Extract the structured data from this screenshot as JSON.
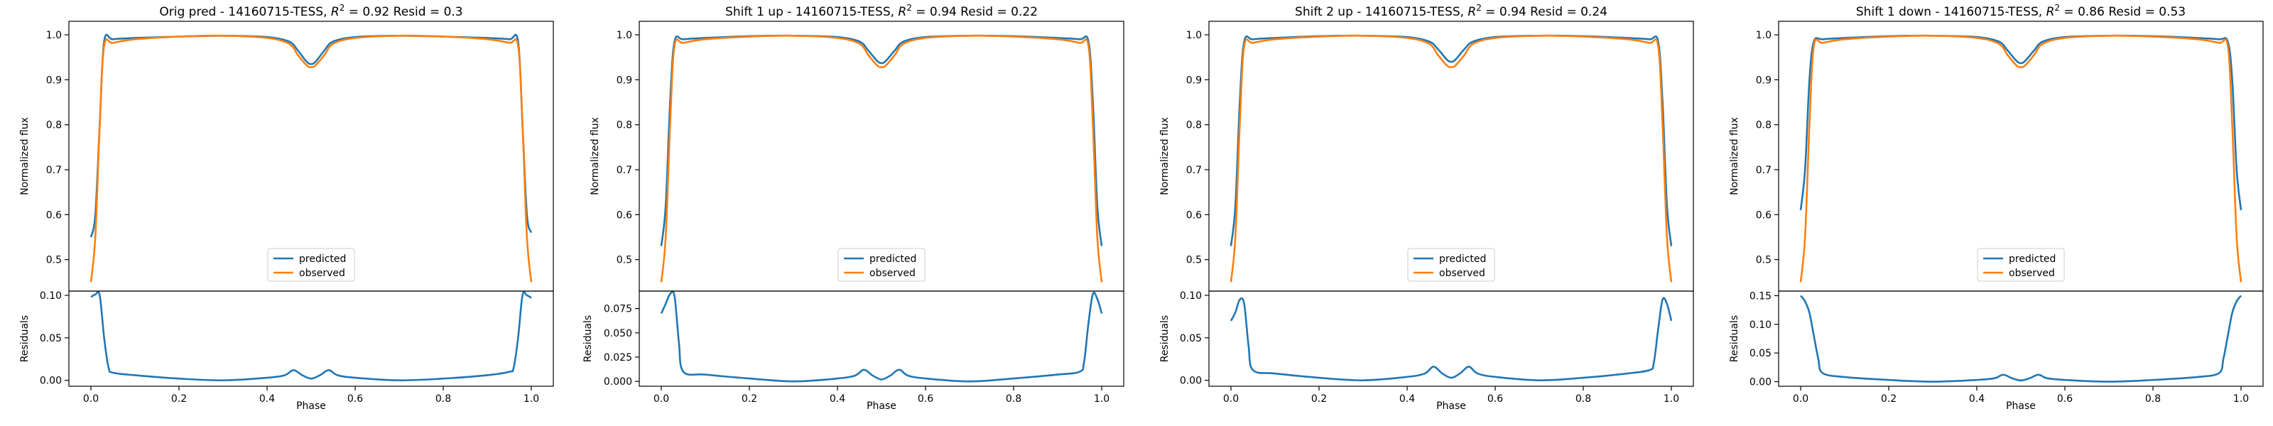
{
  "chart_data": [
    {
      "type": "line",
      "title_text": "Orig pred - 14160715-TESS, ",
      "r2_label": "R",
      "r2_sup": "2",
      "r2_rest": " = 0.92 Resid = 0.3",
      "xlabel": "Phase",
      "ylabel_top": "Normalized flux",
      "ylabel_bottom": "Residuals",
      "xlim": [
        -0.05,
        1.05
      ],
      "ylim_top": [
        0.43,
        1.03
      ],
      "ylim_bottom": [
        -0.007,
        0.105
      ],
      "xticks": [
        "0.0",
        "0.2",
        "0.4",
        "0.6",
        "0.8",
        "1.0"
      ],
      "yticks_top": [
        "0.5",
        "0.6",
        "0.7",
        "0.8",
        "0.9",
        "1.0"
      ],
      "yticks_bottom": [
        "0.00",
        "0.05",
        "0.10"
      ],
      "legend_position": "lower center",
      "series": [
        {
          "name": "predicted",
          "color": "#1f77b4",
          "x": [
            0.0,
            0.01,
            0.02,
            0.03,
            0.05,
            0.1,
            0.2,
            0.3,
            0.4,
            0.45,
            0.47,
            0.49,
            0.5,
            0.51,
            0.53,
            0.55,
            0.6,
            0.7,
            0.8,
            0.9,
            0.95,
            0.97,
            0.98,
            0.99,
            1.0
          ],
          "y": [
            0.55,
            0.6,
            0.8,
            0.985,
            0.99,
            0.993,
            0.996,
            0.998,
            0.995,
            0.985,
            0.965,
            0.94,
            0.935,
            0.94,
            0.965,
            0.985,
            0.995,
            0.998,
            0.996,
            0.993,
            0.99,
            0.985,
            0.8,
            0.6,
            0.56
          ]
        },
        {
          "name": "observed",
          "color": "#ff7f0e",
          "x": [
            0.0,
            0.01,
            0.02,
            0.03,
            0.05,
            0.1,
            0.2,
            0.3,
            0.4,
            0.45,
            0.47,
            0.49,
            0.5,
            0.51,
            0.53,
            0.55,
            0.6,
            0.7,
            0.8,
            0.9,
            0.95,
            0.97,
            0.98,
            0.99,
            1.0
          ],
          "y": [
            0.45,
            0.55,
            0.8,
            0.975,
            0.982,
            0.99,
            0.996,
            0.998,
            0.993,
            0.98,
            0.955,
            0.932,
            0.928,
            0.932,
            0.955,
            0.98,
            0.993,
            0.998,
            0.996,
            0.99,
            0.982,
            0.975,
            0.8,
            0.55,
            0.45
          ]
        }
      ],
      "residuals": {
        "color": "#1f77b4",
        "x": [
          0.0,
          0.01,
          0.02,
          0.03,
          0.04,
          0.05,
          0.1,
          0.2,
          0.3,
          0.4,
          0.44,
          0.46,
          0.48,
          0.5,
          0.52,
          0.54,
          0.56,
          0.6,
          0.7,
          0.8,
          0.9,
          0.95,
          0.96,
          0.97,
          0.98,
          0.99,
          1.0
        ],
        "y": [
          0.098,
          0.101,
          0.1,
          0.05,
          0.015,
          0.009,
          0.006,
          0.002,
          0.0,
          0.003,
          0.006,
          0.012,
          0.006,
          0.002,
          0.006,
          0.012,
          0.006,
          0.003,
          0.0,
          0.002,
          0.006,
          0.01,
          0.015,
          0.05,
          0.1,
          0.1,
          0.097
        ]
      }
    },
    {
      "type": "line",
      "title_text": "Shift 1 up - 14160715-TESS, ",
      "r2_label": "R",
      "r2_sup": "2",
      "r2_rest": " = 0.94 Resid = 0.22",
      "xlabel": "Phase",
      "ylabel_top": "Normalized flux",
      "ylabel_bottom": "Residuals",
      "xlim": [
        -0.05,
        1.05
      ],
      "ylim_top": [
        0.43,
        1.03
      ],
      "ylim_bottom": [
        -0.005,
        0.093
      ],
      "xticks": [
        "0.0",
        "0.2",
        "0.4",
        "0.6",
        "0.8",
        "1.0"
      ],
      "yticks_top": [
        "0.5",
        "0.6",
        "0.7",
        "0.8",
        "0.9",
        "1.0"
      ],
      "yticks_bottom": [
        "0.000",
        "0.025",
        "0.050",
        "0.075"
      ],
      "legend_position": "lower center",
      "series": [
        {
          "name": "predicted",
          "color": "#1f77b4",
          "x": [
            0.0,
            0.01,
            0.02,
            0.03,
            0.05,
            0.1,
            0.2,
            0.3,
            0.4,
            0.45,
            0.47,
            0.49,
            0.5,
            0.51,
            0.53,
            0.55,
            0.6,
            0.7,
            0.8,
            0.9,
            0.95,
            0.97,
            0.98,
            0.99,
            1.0
          ],
          "y": [
            0.53,
            0.62,
            0.85,
            0.985,
            0.99,
            0.993,
            0.997,
            0.998,
            0.995,
            0.985,
            0.965,
            0.942,
            0.937,
            0.942,
            0.965,
            0.985,
            0.995,
            0.998,
            0.997,
            0.993,
            0.99,
            0.985,
            0.85,
            0.62,
            0.53
          ]
        },
        {
          "name": "observed",
          "color": "#ff7f0e",
          "x": [
            0.0,
            0.01,
            0.02,
            0.03,
            0.05,
            0.1,
            0.2,
            0.3,
            0.4,
            0.45,
            0.47,
            0.49,
            0.5,
            0.51,
            0.53,
            0.55,
            0.6,
            0.7,
            0.8,
            0.9,
            0.95,
            0.97,
            0.98,
            0.99,
            1.0
          ],
          "y": [
            0.45,
            0.55,
            0.8,
            0.975,
            0.982,
            0.99,
            0.996,
            0.998,
            0.993,
            0.98,
            0.955,
            0.932,
            0.928,
            0.932,
            0.955,
            0.98,
            0.993,
            0.998,
            0.996,
            0.99,
            0.982,
            0.975,
            0.8,
            0.55,
            0.45
          ]
        }
      ],
      "residuals": {
        "color": "#1f77b4",
        "x": [
          0.0,
          0.01,
          0.02,
          0.03,
          0.04,
          0.05,
          0.1,
          0.2,
          0.3,
          0.4,
          0.44,
          0.46,
          0.48,
          0.5,
          0.52,
          0.54,
          0.56,
          0.6,
          0.7,
          0.8,
          0.9,
          0.95,
          0.96,
          0.97,
          0.98,
          0.99,
          1.0
        ],
        "y": [
          0.07,
          0.08,
          0.09,
          0.088,
          0.04,
          0.01,
          0.007,
          0.003,
          0.0,
          0.003,
          0.006,
          0.012,
          0.006,
          0.002,
          0.006,
          0.012,
          0.006,
          0.003,
          0.0,
          0.003,
          0.007,
          0.01,
          0.02,
          0.06,
          0.09,
          0.085,
          0.07
        ]
      }
    },
    {
      "type": "line",
      "title_text": "Shift 2 up - 14160715-TESS, ",
      "r2_label": "R",
      "r2_sup": "2",
      "r2_rest": " = 0.94 Resid = 0.24",
      "xlabel": "Phase",
      "ylabel_top": "Normalized flux",
      "ylabel_bottom": "Residuals",
      "xlim": [
        -0.05,
        1.05
      ],
      "ylim_top": [
        0.43,
        1.03
      ],
      "ylim_bottom": [
        -0.007,
        0.105
      ],
      "xticks": [
        "0.0",
        "0.2",
        "0.4",
        "0.6",
        "0.8",
        "1.0"
      ],
      "yticks_top": [
        "0.5",
        "0.6",
        "0.7",
        "0.8",
        "0.9",
        "1.0"
      ],
      "yticks_bottom": [
        "0.00",
        "0.05",
        "0.10"
      ],
      "legend_position": "lower center",
      "series": [
        {
          "name": "predicted",
          "color": "#1f77b4",
          "x": [
            0.0,
            0.01,
            0.02,
            0.03,
            0.05,
            0.1,
            0.2,
            0.3,
            0.4,
            0.45,
            0.47,
            0.49,
            0.5,
            0.51,
            0.53,
            0.55,
            0.6,
            0.7,
            0.8,
            0.9,
            0.95,
            0.97,
            0.98,
            0.99,
            1.0
          ],
          "y": [
            0.53,
            0.62,
            0.85,
            0.985,
            0.99,
            0.993,
            0.997,
            0.998,
            0.995,
            0.985,
            0.968,
            0.945,
            0.94,
            0.945,
            0.968,
            0.985,
            0.995,
            0.998,
            0.997,
            0.993,
            0.99,
            0.985,
            0.85,
            0.62,
            0.53
          ]
        },
        {
          "name": "observed",
          "color": "#ff7f0e",
          "x": [
            0.0,
            0.01,
            0.02,
            0.03,
            0.05,
            0.1,
            0.2,
            0.3,
            0.4,
            0.45,
            0.47,
            0.49,
            0.5,
            0.51,
            0.53,
            0.55,
            0.6,
            0.7,
            0.8,
            0.9,
            0.95,
            0.97,
            0.98,
            0.99,
            1.0
          ],
          "y": [
            0.45,
            0.55,
            0.8,
            0.975,
            0.982,
            0.99,
            0.996,
            0.998,
            0.993,
            0.98,
            0.955,
            0.932,
            0.928,
            0.932,
            0.955,
            0.98,
            0.993,
            0.998,
            0.996,
            0.99,
            0.982,
            0.975,
            0.8,
            0.55,
            0.45
          ]
        }
      ],
      "residuals": {
        "color": "#1f77b4",
        "x": [
          0.0,
          0.01,
          0.02,
          0.03,
          0.04,
          0.05,
          0.1,
          0.2,
          0.3,
          0.4,
          0.44,
          0.46,
          0.48,
          0.5,
          0.52,
          0.54,
          0.56,
          0.6,
          0.7,
          0.8,
          0.9,
          0.95,
          0.96,
          0.97,
          0.98,
          0.99,
          1.0
        ],
        "y": [
          0.07,
          0.08,
          0.095,
          0.09,
          0.04,
          0.012,
          0.008,
          0.003,
          0.0,
          0.004,
          0.008,
          0.016,
          0.008,
          0.003,
          0.008,
          0.016,
          0.008,
          0.004,
          0.0,
          0.003,
          0.008,
          0.012,
          0.02,
          0.06,
          0.095,
          0.09,
          0.07
        ]
      }
    },
    {
      "type": "line",
      "title_text": "Shift 1 down - 14160715-TESS, ",
      "r2_label": "R",
      "r2_sup": "2",
      "r2_rest": " = 0.86 Resid = 0.53",
      "xlabel": "Phase",
      "ylabel_top": "Normalized flux",
      "ylabel_bottom": "Residuals",
      "xlim": [
        -0.05,
        1.05
      ],
      "ylim_top": [
        0.43,
        1.03
      ],
      "ylim_bottom": [
        -0.008,
        0.158
      ],
      "xticks": [
        "0.0",
        "0.2",
        "0.4",
        "0.6",
        "0.8",
        "1.0"
      ],
      "yticks_top": [
        "0.5",
        "0.6",
        "0.7",
        "0.8",
        "0.9",
        "1.0"
      ],
      "yticks_bottom": [
        "0.00",
        "0.05",
        "0.10",
        "0.15"
      ],
      "legend_position": "lower center",
      "series": [
        {
          "name": "predicted",
          "color": "#1f77b4",
          "x": [
            0.0,
            0.01,
            0.02,
            0.03,
            0.05,
            0.1,
            0.2,
            0.3,
            0.4,
            0.45,
            0.47,
            0.49,
            0.5,
            0.51,
            0.53,
            0.55,
            0.6,
            0.7,
            0.8,
            0.9,
            0.95,
            0.97,
            0.98,
            0.99,
            1.0
          ],
          "y": [
            0.61,
            0.7,
            0.9,
            0.985,
            0.99,
            0.993,
            0.997,
            0.998,
            0.995,
            0.985,
            0.965,
            0.942,
            0.937,
            0.942,
            0.965,
            0.985,
            0.995,
            0.998,
            0.997,
            0.993,
            0.99,
            0.985,
            0.9,
            0.7,
            0.61
          ]
        },
        {
          "name": "observed",
          "color": "#ff7f0e",
          "x": [
            0.0,
            0.01,
            0.02,
            0.03,
            0.05,
            0.1,
            0.2,
            0.3,
            0.4,
            0.45,
            0.47,
            0.49,
            0.5,
            0.51,
            0.53,
            0.55,
            0.6,
            0.7,
            0.8,
            0.9,
            0.95,
            0.97,
            0.98,
            0.99,
            1.0
          ],
          "y": [
            0.45,
            0.55,
            0.8,
            0.975,
            0.982,
            0.99,
            0.996,
            0.998,
            0.993,
            0.98,
            0.955,
            0.932,
            0.928,
            0.932,
            0.955,
            0.98,
            0.993,
            0.998,
            0.996,
            0.99,
            0.982,
            0.975,
            0.8,
            0.55,
            0.45
          ]
        }
      ],
      "residuals": {
        "color": "#1f77b4",
        "x": [
          0.0,
          0.01,
          0.02,
          0.03,
          0.04,
          0.05,
          0.1,
          0.2,
          0.3,
          0.4,
          0.44,
          0.46,
          0.48,
          0.5,
          0.52,
          0.54,
          0.56,
          0.6,
          0.7,
          0.8,
          0.9,
          0.95,
          0.96,
          0.97,
          0.98,
          0.99,
          1.0
        ],
        "y": [
          0.15,
          0.14,
          0.12,
          0.08,
          0.04,
          0.015,
          0.008,
          0.003,
          0.0,
          0.003,
          0.006,
          0.012,
          0.006,
          0.002,
          0.006,
          0.012,
          0.006,
          0.003,
          0.0,
          0.003,
          0.008,
          0.015,
          0.04,
          0.08,
          0.12,
          0.14,
          0.15
        ]
      }
    }
  ]
}
